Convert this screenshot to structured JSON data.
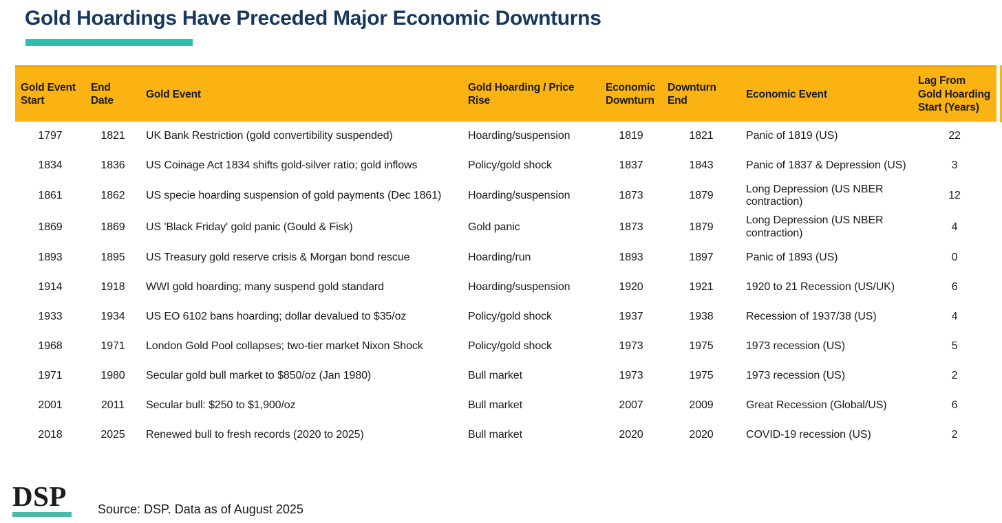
{
  "colors": {
    "header_gold": "#FAB312",
    "accent_teal": "#2CBFAD",
    "title_navy": "#17375E",
    "text_dark": "#1A1A1A"
  },
  "chart_data": {
    "type": "table",
    "title": "Gold Hoardings Have Preceded Major Economic Downturns",
    "columns": [
      "Gold Event Start",
      "End Date",
      "Gold Event",
      "Gold Hoarding / Price Rise",
      "Economic Downturn",
      "Downturn End",
      "Economic Event",
      "Lag From Gold Hoarding Start (Years)"
    ],
    "rows": [
      [
        "1797",
        "1821",
        "UK Bank Restriction (gold convertibility suspended)",
        "Hoarding/suspension",
        "1819",
        "1821",
        "Panic of 1819 (US)",
        "22"
      ],
      [
        "1834",
        "1836",
        "US Coinage Act 1834 shifts gold-silver ratio; gold inflows",
        "Policy/gold shock",
        "1837",
        "1843",
        "Panic of 1837 & Depression (US)",
        "3"
      ],
      [
        "1861",
        "1862",
        "US specie hoarding suspension of gold payments (Dec 1861)",
        "Hoarding/suspension",
        "1873",
        "1879",
        "Long Depression (US NBER contraction)",
        "12"
      ],
      [
        "1869",
        "1869",
        "US 'Black Friday' gold panic (Gould & Fisk)",
        "Gold panic",
        "1873",
        "1879",
        "Long Depression (US NBER contraction)",
        "4"
      ],
      [
        "1893",
        "1895",
        "US Treasury gold reserve crisis & Morgan bond rescue",
        "Hoarding/run",
        "1893",
        "1897",
        "Panic of 1893 (US)",
        "0"
      ],
      [
        "1914",
        "1918",
        "WWI gold hoarding; many suspend gold standard",
        "Hoarding/suspension",
        "1920",
        "1921",
        "1920 to 21 Recession (US/UK)",
        "6"
      ],
      [
        "1933",
        "1934",
        "US EO 6102 bans hoarding; dollar devalued to $35/oz",
        "Policy/gold shock",
        "1937",
        "1938",
        "Recession of 1937/38 (US)",
        "4"
      ],
      [
        "1968",
        "1971",
        "London Gold Pool collapses; two-tier market  Nixon Shock",
        "Policy/gold shock",
        "1973",
        "1975",
        "1973 recession (US)",
        "5"
      ],
      [
        "1971",
        "1980",
        "Secular gold bull market to $850/oz (Jan 1980)",
        "Bull market",
        "1973",
        "1975",
        "1973 recession (US)",
        "2"
      ],
      [
        "2001",
        "2011",
        "Secular bull: $250 to $1,900/oz",
        "Bull market",
        "2007",
        "2009",
        "Great Recession (Global/US)",
        "6"
      ],
      [
        "2018",
        "2025",
        "Renewed bull to fresh records (2020 to 2025)",
        "Bull market",
        "2020",
        "2020",
        "COVID-19 recession (US)",
        "2"
      ]
    ]
  },
  "footer": {
    "logo_text": "DSP",
    "source_text": "Source: DSP. Data as of August 2025"
  }
}
